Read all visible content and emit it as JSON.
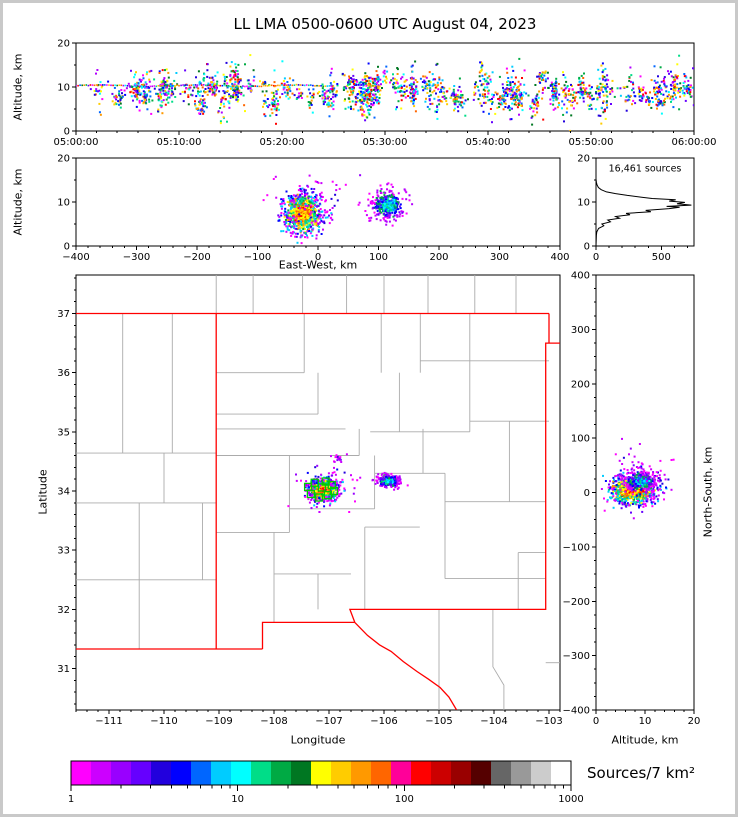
{
  "title": "LL LMA 0500-0600 UTC August 04, 2023",
  "palettes": {
    "rainbow": [
      "#FF00FF",
      "#B200FF",
      "#6600FF",
      "#2200DD",
      "#0000FF",
      "#0066FF",
      "#00CCFF",
      "#00FFFF",
      "#00DD88",
      "#00AA44",
      "#007722",
      "#FFFF00",
      "#FFCC00",
      "#FF9900",
      "#FF6600",
      "#FF0000"
    ],
    "storm1": {
      "core": [
        "#FF0000",
        "#FF6600",
        "#FFCC00",
        "#FFFF00"
      ],
      "mid": [
        "#00AA44",
        "#00DD88",
        "#FFFF00",
        "#00CCFF",
        "#FF9900"
      ],
      "outer": [
        "#0000FF",
        "#6600FF",
        "#CC00FF",
        "#FF00FF",
        "#00CCFF"
      ]
    },
    "storm2": {
      "core": [
        "#00CCFF",
        "#0066FF",
        "#00FFFF",
        "#00DD88"
      ],
      "mid": [
        "#0000FF",
        "#6600FF",
        "#00AA44"
      ],
      "outer": [
        "#FF00FF",
        "#CC00FF",
        "#B200FF"
      ]
    },
    "sparse": {
      "core": [
        "#CC00FF",
        "#FF00FF",
        "#7700FF"
      ],
      "mid": [
        "#CC00FF",
        "#FF00FF",
        "#2200DD"
      ],
      "outer": [
        "#FF00FF",
        "#9900FF",
        "#CC00FF"
      ]
    }
  },
  "chart_data": [
    {
      "id": "time_height",
      "type": "scatter",
      "ylabel": "Altitude, km",
      "xlim": [
        0,
        3600
      ],
      "ylim": [
        0,
        20
      ],
      "xticks": [
        0,
        600,
        1200,
        1800,
        2400,
        3000,
        3600
      ],
      "xtick_labels": [
        "05:00:00",
        "05:10:00",
        "05:20:00",
        "05:30:00",
        "05:40:00",
        "05:50:00",
        "06:00:00"
      ],
      "yticks": [
        0,
        10,
        20
      ],
      "xminor": 120,
      "yminor": 5,
      "bursts": {
        "count": 155,
        "alt_mean": 8.8,
        "points_min": 4,
        "points_max": 26
      },
      "track": {
        "t0": 0,
        "t1": 1500,
        "alt": 10.3
      }
    },
    {
      "id": "ew_height",
      "type": "scatter",
      "xlabel": "East-West, km",
      "ylabel": "Altitude, km",
      "xlim": [
        -400,
        400
      ],
      "ylim": [
        0,
        20
      ],
      "xticks": [
        -400,
        -300,
        -200,
        -100,
        0,
        100,
        200,
        300,
        400
      ],
      "yticks": [
        0,
        10,
        20
      ],
      "xminor": 20,
      "yminor": 5,
      "clusters": [
        {
          "cx": -25,
          "cy": 7.4,
          "sx": 16,
          "sy": 2.3,
          "n": 850,
          "palette": "storm1"
        },
        {
          "cx": 115,
          "cy": 9.3,
          "sx": 13,
          "sy": 1.6,
          "n": 380,
          "palette": "storm2"
        },
        {
          "cx": -20,
          "cy": 10.5,
          "sx": 32,
          "sy": 3.0,
          "n": 70,
          "palette": "sparse"
        }
      ]
    },
    {
      "id": "alt_histogram",
      "type": "line",
      "annotation": "16,461 sources",
      "xlim": [
        0,
        750
      ],
      "ylim": [
        0,
        20
      ],
      "xticks": [
        0,
        500
      ],
      "yticks": [
        0,
        10,
        20
      ],
      "xminor": 100,
      "yminor": 5,
      "profile": [
        [
          0,
          0
        ],
        [
          3,
          2.5
        ],
        [
          6,
          3.2
        ],
        [
          20,
          4.0
        ],
        [
          60,
          4.6
        ],
        [
          45,
          5.0
        ],
        [
          110,
          5.5
        ],
        [
          90,
          5.9
        ],
        [
          180,
          6.3
        ],
        [
          150,
          6.7
        ],
        [
          260,
          7.1
        ],
        [
          230,
          7.4
        ],
        [
          420,
          7.8
        ],
        [
          380,
          8.1
        ],
        [
          560,
          8.5
        ],
        [
          640,
          8.8
        ],
        [
          540,
          9.0
        ],
        [
          730,
          9.3
        ],
        [
          620,
          9.6
        ],
        [
          680,
          9.9
        ],
        [
          560,
          10.2
        ],
        [
          610,
          10.5
        ],
        [
          430,
          10.8
        ],
        [
          350,
          11.1
        ],
        [
          240,
          11.5
        ],
        [
          150,
          11.9
        ],
        [
          80,
          12.3
        ],
        [
          40,
          12.8
        ],
        [
          18,
          13.3
        ],
        [
          8,
          13.9
        ],
        [
          3,
          14.5
        ],
        [
          0,
          15.2
        ],
        [
          0,
          20
        ]
      ]
    },
    {
      "id": "map",
      "type": "scatter",
      "xlabel": "Longitude",
      "ylabel": "Latitude",
      "xlim": [
        -111.6,
        -102.8
      ],
      "ylim": [
        30.3,
        37.65
      ],
      "xticks": [
        -111,
        -110,
        -109,
        -108,
        -107,
        -106,
        -105,
        -104,
        -103
      ],
      "yticks": [
        31,
        32,
        33,
        34,
        35,
        36,
        37
      ],
      "xminor": 0.2,
      "yminor": 0.2,
      "state_border_color": "#FF0000",
      "county_border_color": "#ABABAB",
      "station_color": "#00CC00",
      "clusters": [
        {
          "cx": -107.1,
          "cy": 34.02,
          "sx": 0.13,
          "sy": 0.085,
          "n": 850,
          "palette": "storm1"
        },
        {
          "cx": -105.92,
          "cy": 34.17,
          "sx": 0.1,
          "sy": 0.05,
          "n": 320,
          "palette": "storm2"
        },
        {
          "cx": -106.84,
          "cy": 34.55,
          "sx": 0.05,
          "sy": 0.03,
          "n": 18,
          "palette": "sparse"
        },
        {
          "cx": -107.0,
          "cy": 34.08,
          "sx": 0.28,
          "sy": 0.2,
          "n": 60,
          "palette": "sparse"
        }
      ],
      "stations": [
        [
          -107.38,
          34.07
        ],
        [
          -107.26,
          34.14
        ],
        [
          -107.13,
          34.06
        ],
        [
          -107.33,
          33.95
        ],
        [
          -107.18,
          33.89
        ],
        [
          -107.02,
          33.93
        ],
        [
          -106.91,
          34.0
        ],
        [
          -107.06,
          34.16
        ],
        [
          -106.95,
          34.1
        ]
      ],
      "state_borders": [
        [
          [
            -111.6,
            37.0
          ],
          [
            -103.0,
            37.0
          ]
        ],
        [
          [
            -109.05,
            37.0
          ],
          [
            -109.05,
            31.33
          ]
        ],
        [
          [
            -111.6,
            31.33
          ],
          [
            -108.21,
            31.33
          ]
        ],
        [
          [
            -108.21,
            31.33
          ],
          [
            -108.21,
            31.78
          ],
          [
            -106.53,
            31.78
          ]
        ],
        [
          [
            -106.53,
            31.78
          ],
          [
            -106.62,
            32.0
          ],
          [
            -103.06,
            32.0
          ],
          [
            -103.06,
            36.5
          ],
          [
            -102.8,
            36.5
          ]
        ],
        [
          [
            -103.0,
            36.5
          ],
          [
            -103.0,
            37.0
          ]
        ],
        [
          [
            -106.53,
            31.78
          ],
          [
            -106.3,
            31.56
          ],
          [
            -106.08,
            31.4
          ],
          [
            -105.87,
            31.29
          ],
          [
            -105.65,
            31.12
          ],
          [
            -105.4,
            30.95
          ],
          [
            -105.19,
            30.82
          ],
          [
            -104.98,
            30.68
          ],
          [
            -104.82,
            30.52
          ],
          [
            -104.68,
            30.3
          ]
        ]
      ],
      "county_borders": [
        [
          [
            -110.45,
            31.33
          ],
          [
            -110.45,
            32.5
          ]
        ],
        [
          [
            -111.6,
            32.5
          ],
          [
            -109.05,
            32.5
          ]
        ],
        [
          [
            -109.3,
            32.5
          ],
          [
            -109.3,
            33.8
          ]
        ],
        [
          [
            -110.45,
            32.5
          ],
          [
            -110.45,
            33.8
          ]
        ],
        [
          [
            -111.6,
            33.8
          ],
          [
            -109.05,
            33.8
          ]
        ],
        [
          [
            -111.6,
            34.64
          ],
          [
            -109.05,
            34.64
          ]
        ],
        [
          [
            -110.0,
            33.8
          ],
          [
            -110.0,
            34.64
          ]
        ],
        [
          [
            -109.85,
            34.64
          ],
          [
            -109.85,
            37.0
          ]
        ],
        [
          [
            -110.75,
            34.64
          ],
          [
            -110.75,
            37.0
          ]
        ],
        [
          [
            -109.05,
            37.0
          ],
          [
            -109.05,
            37.65
          ]
        ],
        [
          [
            -108.38,
            37.0
          ],
          [
            -108.38,
            37.65
          ]
        ],
        [
          [
            -107.48,
            37.0
          ],
          [
            -107.48,
            37.65
          ]
        ],
        [
          [
            -106.68,
            37.0
          ],
          [
            -106.68,
            37.65
          ]
        ],
        [
          [
            -106.0,
            37.0
          ],
          [
            -106.0,
            37.65
          ]
        ],
        [
          [
            -105.2,
            37.0
          ],
          [
            -105.2,
            37.65
          ]
        ],
        [
          [
            -104.35,
            37.0
          ],
          [
            -104.35,
            37.65
          ]
        ],
        [
          [
            -103.6,
            37.0
          ],
          [
            -103.6,
            37.65
          ]
        ],
        [
          [
            -105.0,
            32.0
          ],
          [
            -105.0,
            30.3
          ]
        ],
        [
          [
            -104.02,
            32.0
          ],
          [
            -104.02,
            31.03
          ],
          [
            -103.82,
            30.72
          ],
          [
            -103.82,
            30.3
          ]
        ],
        [
          [
            -103.06,
            31.1
          ],
          [
            -102.8,
            31.1
          ]
        ],
        [
          [
            -109.05,
            36.0
          ],
          [
            -107.45,
            36.0
          ]
        ],
        [
          [
            -107.45,
            36.0
          ],
          [
            -107.45,
            37.0
          ]
        ],
        [
          [
            -106.05,
            36.0
          ],
          [
            -106.05,
            37.0
          ]
        ],
        [
          [
            -105.34,
            36.0
          ],
          [
            -105.34,
            37.0
          ]
        ],
        [
          [
            -104.44,
            36.2
          ],
          [
            -104.44,
            37.0
          ]
        ],
        [
          [
            -105.34,
            36.2
          ],
          [
            -103.0,
            36.2
          ]
        ],
        [
          [
            -109.05,
            35.3
          ],
          [
            -107.2,
            35.3
          ]
        ],
        [
          [
            -107.2,
            35.3
          ],
          [
            -107.2,
            36.0
          ]
        ],
        [
          [
            -109.05,
            35.05
          ],
          [
            -106.7,
            35.05
          ]
        ],
        [
          [
            -109.05,
            34.6
          ],
          [
            -106.45,
            34.6
          ]
        ],
        [
          [
            -106.45,
            34.6
          ],
          [
            -106.45,
            35.05
          ]
        ],
        [
          [
            -107.72,
            33.3
          ],
          [
            -107.72,
            34.6
          ]
        ],
        [
          [
            -109.05,
            33.3
          ],
          [
            -107.72,
            33.3
          ]
        ],
        [
          [
            -108.0,
            31.78
          ],
          [
            -108.0,
            33.3
          ]
        ],
        [
          [
            -107.72,
            33.7
          ],
          [
            -106.17,
            33.7
          ]
        ],
        [
          [
            -108.0,
            32.6
          ],
          [
            -106.6,
            32.6
          ]
        ],
        [
          [
            -107.2,
            32.0
          ],
          [
            -107.2,
            32.6
          ]
        ],
        [
          [
            -106.35,
            32.0
          ],
          [
            -106.35,
            33.39
          ]
        ],
        [
          [
            -106.17,
            33.7
          ],
          [
            -106.17,
            34.6
          ]
        ],
        [
          [
            -106.35,
            33.39
          ],
          [
            -105.35,
            33.39
          ]
        ],
        [
          [
            -106.17,
            34.3
          ],
          [
            -104.89,
            34.3
          ]
        ],
        [
          [
            -105.29,
            34.3
          ],
          [
            -105.29,
            35.05
          ]
        ],
        [
          [
            -106.25,
            35.0
          ],
          [
            -104.44,
            35.0
          ]
        ],
        [
          [
            -105.72,
            35.0
          ],
          [
            -105.72,
            36.0
          ]
        ],
        [
          [
            -104.89,
            32.52
          ],
          [
            -104.89,
            34.3
          ]
        ],
        [
          [
            -104.89,
            32.52
          ],
          [
            -103.06,
            32.52
          ]
        ],
        [
          [
            -104.89,
            33.82
          ],
          [
            -103.06,
            33.82
          ]
        ],
        [
          [
            -103.72,
            33.82
          ],
          [
            -103.72,
            35.18
          ]
        ],
        [
          [
            -103.56,
            32.0
          ],
          [
            -103.56,
            32.96
          ]
        ],
        [
          [
            -103.56,
            32.96
          ],
          [
            -103.06,
            32.96
          ]
        ],
        [
          [
            -104.44,
            35.18
          ],
          [
            -103.0,
            35.18
          ]
        ],
        [
          [
            -104.44,
            35.0
          ],
          [
            -104.44,
            36.2
          ]
        ]
      ]
    },
    {
      "id": "ns_height",
      "type": "scatter",
      "xlabel": "Altitude, km",
      "right_label": "North-South, km",
      "xlim": [
        0,
        20
      ],
      "ylim": [
        -400,
        400
      ],
      "xticks": [
        0,
        10,
        20
      ],
      "yticks": [
        -400,
        -300,
        -200,
        -100,
        0,
        100,
        200,
        300,
        400
      ],
      "xminor": 2,
      "yminor": 25,
      "clusters": [
        {
          "cx": 7.4,
          "cy": 4,
          "sx": 2.3,
          "sy": 13,
          "n": 800,
          "palette": "storm1"
        },
        {
          "cx": 9.3,
          "cy": 20,
          "sx": 1.6,
          "sy": 9,
          "n": 300,
          "palette": "storm2"
        },
        {
          "cx": 9.5,
          "cy": 25,
          "sx": 3.0,
          "sy": 32,
          "n": 70,
          "palette": "sparse"
        }
      ]
    },
    {
      "id": "colorbar",
      "type": "colorbar",
      "label": "Sources/7 km²",
      "scale": "log",
      "range": [
        1,
        1000
      ],
      "ticks": [
        1,
        10,
        100,
        1000
      ],
      "tick_labels": [
        "1",
        "10",
        "100",
        "1000"
      ],
      "colors": [
        "#FF00FF",
        "#CC00FF",
        "#9900FF",
        "#6600FF",
        "#2200DD",
        "#0000FF",
        "#0066FF",
        "#00CCFF",
        "#00FFFF",
        "#00DD88",
        "#00AA44",
        "#007722",
        "#FFFF00",
        "#FFCC00",
        "#FF9900",
        "#FF6600",
        "#FF0099",
        "#FF0000",
        "#CC0000",
        "#990000",
        "#550000",
        "#666666",
        "#999999",
        "#CCCCCC",
        "#FFFFFF"
      ]
    }
  ]
}
